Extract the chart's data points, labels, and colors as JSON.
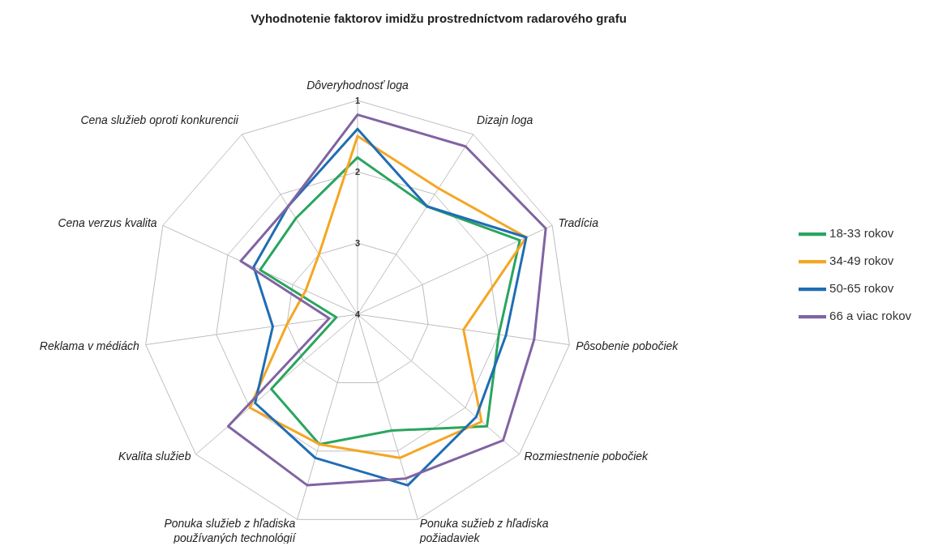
{
  "chart_data": {
    "type": "radar",
    "title": "Vyhodnotenie faktorov imidžu prostredníctvom radarového grafu",
    "categories": [
      "Dôveryhodnosť loga",
      "Dizajn loga",
      "Tradícia",
      "Pôsobenie pobočiek",
      "Rozmiestnenie pobočiek",
      "Ponuka sužieb z hľadiska požiadaviek",
      "Ponuka služieb z hľadiska používaných technológií",
      "Kvalita služieb",
      "Reklama v médiách",
      "Cena verzus kvalita",
      "Cena služieb oproti konkurencii"
    ],
    "series": [
      {
        "name": "18-33 rokov",
        "color": "#2aa55f",
        "values": [
          1.8,
          2.2,
          1.5,
          2.0,
          1.6,
          2.3,
          2.1,
          2.4,
          3.7,
          2.5,
          2.4
        ]
      },
      {
        "name": "34-49 rokov",
        "color": "#f5a623",
        "values": [
          1.5,
          1.9,
          1.4,
          2.5,
          1.7,
          1.9,
          2.1,
          2.0,
          3.0,
          3.2,
          3.0
        ]
      },
      {
        "name": "50-65 rokov",
        "color": "#1f6db3",
        "values": [
          1.4,
          2.2,
          1.4,
          1.9,
          1.8,
          1.5,
          1.9,
          2.1,
          2.8,
          2.4,
          2.2
        ]
      },
      {
        "name": "66 a viac rokov",
        "color": "#8064a2",
        "values": [
          1.2,
          1.2,
          1.1,
          1.5,
          1.3,
          1.6,
          1.5,
          1.6,
          3.6,
          2.2,
          2.2
        ]
      }
    ],
    "ylim": [
      4,
      1
    ],
    "yticks": [
      1,
      2,
      3,
      4
    ],
    "grid": true,
    "legend": "right"
  }
}
